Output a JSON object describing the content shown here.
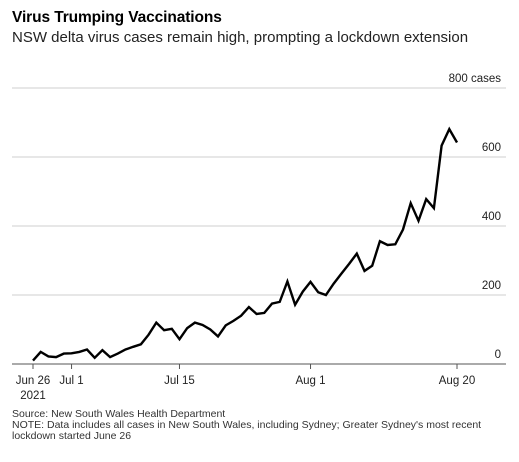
{
  "header": {
    "title": "Virus Trumping Vaccinations",
    "subtitle": "NSW delta virus cases remain high, prompting a lockdown extension"
  },
  "footer": {
    "source": "Source: New South Wales Health Department",
    "note": "NOTE: Data includes all cases in New South Wales, including Sydney; Greater Sydney's most recent lockdown started June 26"
  },
  "chart_data": {
    "type": "line",
    "title": "Virus Trumping Vaccinations",
    "subtitle": "NSW delta virus cases remain high, prompting a lockdown extension",
    "xlabel": "",
    "ylabel": "",
    "ylim": [
      0,
      800
    ],
    "y_ticks": [
      {
        "value": 0,
        "label": "0"
      },
      {
        "value": 200,
        "label": "200"
      },
      {
        "value": 400,
        "label": "400"
      },
      {
        "value": 600,
        "label": "600"
      },
      {
        "value": 800,
        "label": "800 cases"
      }
    ],
    "x_ticks": [
      {
        "date": "2021-06-26",
        "label": "Jun 26",
        "sublabel": "2021"
      },
      {
        "date": "2021-07-01",
        "label": "Jul 1"
      },
      {
        "date": "2021-07-15",
        "label": "Jul 15"
      },
      {
        "date": "2021-08-01",
        "label": "Aug 1"
      },
      {
        "date": "2021-08-20",
        "label": "Aug 20"
      }
    ],
    "grid": true,
    "color": "#000000",
    "series": [
      {
        "values": [
          {
            "x": "2021-06-26",
            "y": 10
          },
          {
            "x": "2021-06-27",
            "y": 35
          },
          {
            "x": "2021-06-28",
            "y": 22
          },
          {
            "x": "2021-06-29",
            "y": 20
          },
          {
            "x": "2021-06-30",
            "y": 30
          },
          {
            "x": "2021-07-01",
            "y": 31
          },
          {
            "x": "2021-07-02",
            "y": 35
          },
          {
            "x": "2021-07-03",
            "y": 42
          },
          {
            "x": "2021-07-04",
            "y": 18
          },
          {
            "x": "2021-07-05",
            "y": 40
          },
          {
            "x": "2021-07-06",
            "y": 20
          },
          {
            "x": "2021-07-07",
            "y": 30
          },
          {
            "x": "2021-07-08",
            "y": 42
          },
          {
            "x": "2021-07-09",
            "y": 50
          },
          {
            "x": "2021-07-10",
            "y": 57
          },
          {
            "x": "2021-07-11",
            "y": 85
          },
          {
            "x": "2021-07-12",
            "y": 120
          },
          {
            "x": "2021-07-13",
            "y": 98
          },
          {
            "x": "2021-07-14",
            "y": 102
          },
          {
            "x": "2021-07-15",
            "y": 72
          },
          {
            "x": "2021-07-16",
            "y": 104
          },
          {
            "x": "2021-07-17",
            "y": 120
          },
          {
            "x": "2021-07-18",
            "y": 113
          },
          {
            "x": "2021-07-19",
            "y": 100
          },
          {
            "x": "2021-07-20",
            "y": 80
          },
          {
            "x": "2021-07-21",
            "y": 112
          },
          {
            "x": "2021-07-22",
            "y": 125
          },
          {
            "x": "2021-07-23",
            "y": 140
          },
          {
            "x": "2021-07-24",
            "y": 165
          },
          {
            "x": "2021-07-25",
            "y": 145
          },
          {
            "x": "2021-07-26",
            "y": 148
          },
          {
            "x": "2021-07-27",
            "y": 175
          },
          {
            "x": "2021-07-28",
            "y": 180
          },
          {
            "x": "2021-07-29",
            "y": 239
          },
          {
            "x": "2021-07-30",
            "y": 172
          },
          {
            "x": "2021-07-31",
            "y": 210
          },
          {
            "x": "2021-08-01",
            "y": 238
          },
          {
            "x": "2021-08-02",
            "y": 208
          },
          {
            "x": "2021-08-03",
            "y": 200
          },
          {
            "x": "2021-08-04",
            "y": 233
          },
          {
            "x": "2021-08-05",
            "y": 262
          },
          {
            "x": "2021-08-06",
            "y": 290
          },
          {
            "x": "2021-08-07",
            "y": 320
          },
          {
            "x": "2021-08-08",
            "y": 270
          },
          {
            "x": "2021-08-09",
            "y": 285
          },
          {
            "x": "2021-08-10",
            "y": 356
          },
          {
            "x": "2021-08-11",
            "y": 345
          },
          {
            "x": "2021-08-12",
            "y": 347
          },
          {
            "x": "2021-08-13",
            "y": 390
          },
          {
            "x": "2021-08-14",
            "y": 466
          },
          {
            "x": "2021-08-15",
            "y": 415
          },
          {
            "x": "2021-08-16",
            "y": 478
          },
          {
            "x": "2021-08-17",
            "y": 452
          },
          {
            "x": "2021-08-18",
            "y": 633
          },
          {
            "x": "2021-08-19",
            "y": 681
          },
          {
            "x": "2021-08-20",
            "y": 642
          }
        ]
      }
    ]
  }
}
